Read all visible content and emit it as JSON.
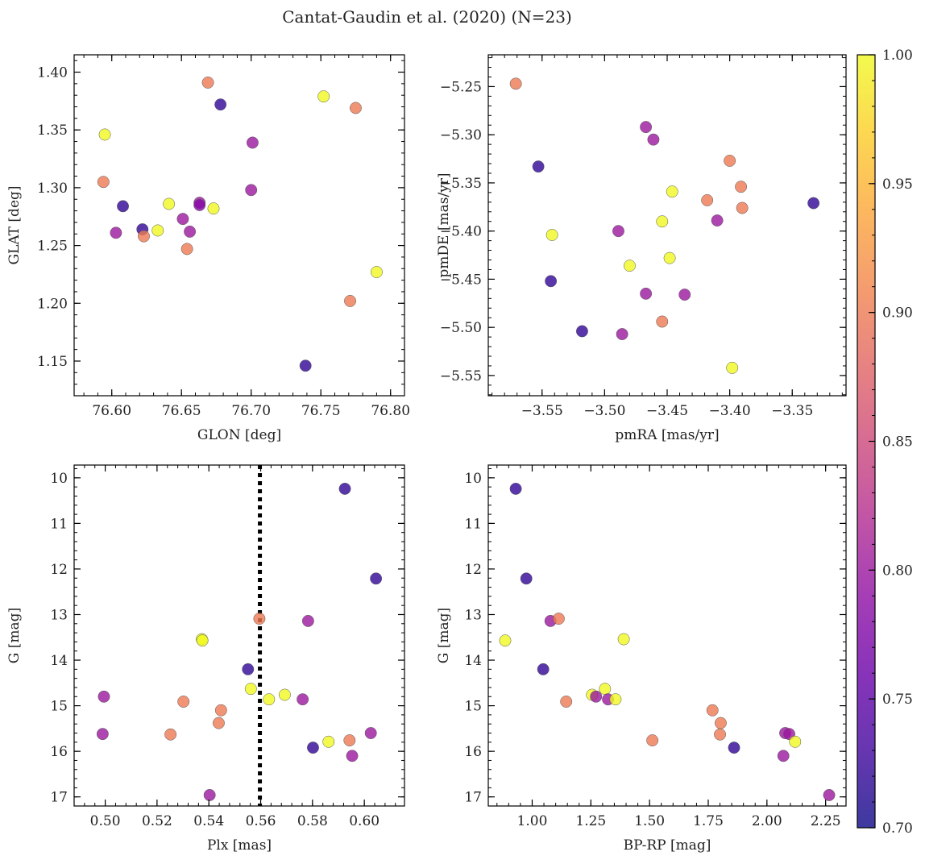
{
  "figure": {
    "title": "Cantat-Gaudin et al. (2020) (N=23)"
  },
  "colorbar": {
    "range": [
      0.7,
      1.0
    ],
    "ticks": [
      0.7,
      0.75,
      0.8,
      0.85,
      0.9,
      0.95,
      1.0
    ],
    "tick_labels": [
      "0.70",
      "0.75",
      "0.80",
      "0.85",
      "0.90",
      "0.95",
      "1.00"
    ],
    "colormap": "plasma"
  },
  "chart_data": [
    {
      "type": "scatter",
      "xlabel": "GLON [deg]",
      "ylabel": "GLAT [deg]",
      "xlim": [
        76.573,
        76.81
      ],
      "ylim": [
        1.12,
        1.415
      ],
      "xticks": [
        76.6,
        76.65,
        76.7,
        76.75,
        76.8
      ],
      "xtick_labels": [
        "76.60",
        "76.65",
        "76.70",
        "76.75",
        "76.80"
      ],
      "yticks": [
        1.15,
        1.2,
        1.25,
        1.3,
        1.35,
        1.4
      ],
      "ytick_labels": [
        "1.15",
        "1.20",
        "1.25",
        "1.30",
        "1.35",
        "1.40"
      ],
      "points": [
        {
          "x": 76.595,
          "y": 1.346,
          "c": 1.0
        },
        {
          "x": 76.594,
          "y": 1.305,
          "c": 0.9
        },
        {
          "x": 76.608,
          "y": 1.284,
          "c": 0.72
        },
        {
          "x": 76.603,
          "y": 1.261,
          "c": 0.8
        },
        {
          "x": 76.622,
          "y": 1.264,
          "c": 0.72
        },
        {
          "x": 76.623,
          "y": 1.258,
          "c": 0.9
        },
        {
          "x": 76.633,
          "y": 1.263,
          "c": 1.0
        },
        {
          "x": 76.641,
          "y": 1.286,
          "c": 1.0
        },
        {
          "x": 76.651,
          "y": 1.273,
          "c": 0.8
        },
        {
          "x": 76.654,
          "y": 1.247,
          "c": 0.9
        },
        {
          "x": 76.656,
          "y": 1.262,
          "c": 0.8
        },
        {
          "x": 76.663,
          "y": 1.287,
          "c": 0.8
        },
        {
          "x": 76.663,
          "y": 1.285,
          "c": 0.78
        },
        {
          "x": 76.669,
          "y": 1.391,
          "c": 0.9
        },
        {
          "x": 76.673,
          "y": 1.282,
          "c": 1.0
        },
        {
          "x": 76.678,
          "y": 1.372,
          "c": 0.72
        },
        {
          "x": 76.7,
          "y": 1.298,
          "c": 0.8
        },
        {
          "x": 76.701,
          "y": 1.339,
          "c": 0.8
        },
        {
          "x": 76.739,
          "y": 1.146,
          "c": 0.72
        },
        {
          "x": 76.752,
          "y": 1.379,
          "c": 1.0
        },
        {
          "x": 76.771,
          "y": 1.202,
          "c": 0.9
        },
        {
          "x": 76.775,
          "y": 1.369,
          "c": 0.9
        },
        {
          "x": 76.79,
          "y": 1.227,
          "c": 1.0
        }
      ]
    },
    {
      "type": "scatter",
      "xlabel": "pmRA [mas/yr]",
      "ylabel": "pmDE [mas/yr]",
      "xlim": [
        -3.593,
        -3.307
      ],
      "ylim": [
        -5.571,
        -5.217
      ],
      "xticks": [
        -3.55,
        -3.5,
        -3.45,
        -3.4,
        -3.35
      ],
      "xtick_labels": [
        "−3.55",
        "−3.50",
        "−3.45",
        "−3.40",
        "−3.35"
      ],
      "yticks": [
        -5.55,
        -5.5,
        -5.45,
        -5.4,
        -5.35,
        -5.3,
        -5.25
      ],
      "ytick_labels": [
        "−5.55",
        "−5.50",
        "−5.45",
        "−5.40",
        "−5.35",
        "−5.30",
        "−5.25"
      ],
      "points": [
        {
          "x": -3.571,
          "y": -5.247,
          "c": 0.9
        },
        {
          "x": -3.553,
          "y": -5.333,
          "c": 0.72
        },
        {
          "x": -3.542,
          "y": -5.404,
          "c": 1.0
        },
        {
          "x": -3.543,
          "y": -5.452,
          "c": 0.72
        },
        {
          "x": -3.518,
          "y": -5.504,
          "c": 0.72
        },
        {
          "x": -3.489,
          "y": -5.4,
          "c": 0.8
        },
        {
          "x": -3.486,
          "y": -5.507,
          "c": 0.8
        },
        {
          "x": -3.48,
          "y": -5.436,
          "c": 1.0
        },
        {
          "x": -3.467,
          "y": -5.292,
          "c": 0.8
        },
        {
          "x": -3.467,
          "y": -5.465,
          "c": 0.8
        },
        {
          "x": -3.461,
          "y": -5.305,
          "c": 0.8
        },
        {
          "x": -3.454,
          "y": -5.39,
          "c": 1.0
        },
        {
          "x": -3.454,
          "y": -5.494,
          "c": 0.9
        },
        {
          "x": -3.448,
          "y": -5.428,
          "c": 1.0
        },
        {
          "x": -3.446,
          "y": -5.359,
          "c": 1.0
        },
        {
          "x": -3.436,
          "y": -5.466,
          "c": 0.8
        },
        {
          "x": -3.418,
          "y": -5.368,
          "c": 0.9
        },
        {
          "x": -3.41,
          "y": -5.389,
          "c": 0.8
        },
        {
          "x": -3.4,
          "y": -5.327,
          "c": 0.9
        },
        {
          "x": -3.398,
          "y": -5.542,
          "c": 1.0
        },
        {
          "x": -3.391,
          "y": -5.354,
          "c": 0.9
        },
        {
          "x": -3.39,
          "y": -5.376,
          "c": 0.9
        },
        {
          "x": -3.333,
          "y": -5.371,
          "c": 0.72
        }
      ]
    },
    {
      "type": "scatter",
      "xlabel": "Plx [mas]",
      "ylabel": "G [mag]",
      "xlim": [
        0.488,
        0.6155
      ],
      "ylim": [
        17.2,
        9.72
      ],
      "y_inverted": true,
      "xticks": [
        0.5,
        0.52,
        0.54,
        0.56,
        0.58,
        0.6
      ],
      "xtick_labels": [
        "0.50",
        "0.52",
        "0.54",
        "0.56",
        "0.58",
        "0.60"
      ],
      "yticks": [
        10,
        11,
        12,
        13,
        14,
        15,
        16,
        17
      ],
      "ytick_labels": [
        "10",
        "11",
        "12",
        "13",
        "14",
        "15",
        "16",
        "17"
      ],
      "vline": {
        "x": 0.5597,
        "style": "dotted"
      },
      "points": [
        {
          "x": 0.4995,
          "y": 14.8,
          "c": 0.8
        },
        {
          "x": 0.499,
          "y": 15.62,
          "c": 0.8
        },
        {
          "x": 0.5252,
          "y": 15.63,
          "c": 0.9
        },
        {
          "x": 0.5302,
          "y": 14.91,
          "c": 0.9
        },
        {
          "x": 0.5373,
          "y": 13.54,
          "c": 1.0
        },
        {
          "x": 0.5375,
          "y": 13.57,
          "c": 1.0
        },
        {
          "x": 0.5403,
          "y": 16.96,
          "c": 0.8
        },
        {
          "x": 0.5438,
          "y": 15.38,
          "c": 0.9
        },
        {
          "x": 0.5447,
          "y": 15.1,
          "c": 0.9
        },
        {
          "x": 0.5551,
          "y": 14.2,
          "c": 0.72
        },
        {
          "x": 0.5562,
          "y": 14.63,
          "c": 1.0
        },
        {
          "x": 0.5595,
          "y": 13.09,
          "c": 0.9
        },
        {
          "x": 0.5632,
          "y": 14.86,
          "c": 1.0
        },
        {
          "x": 0.5693,
          "y": 14.76,
          "c": 1.0
        },
        {
          "x": 0.5762,
          "y": 14.86,
          "c": 0.8
        },
        {
          "x": 0.5783,
          "y": 13.14,
          "c": 0.8
        },
        {
          "x": 0.5802,
          "y": 15.92,
          "c": 0.72
        },
        {
          "x": 0.5862,
          "y": 15.79,
          "c": 1.0
        },
        {
          "x": 0.5925,
          "y": 10.24,
          "c": 0.72
        },
        {
          "x": 0.5943,
          "y": 15.76,
          "c": 0.9
        },
        {
          "x": 0.5953,
          "y": 16.1,
          "c": 0.8
        },
        {
          "x": 0.6025,
          "y": 15.6,
          "c": 0.8
        },
        {
          "x": 0.6045,
          "y": 12.21,
          "c": 0.72
        }
      ]
    },
    {
      "type": "scatter",
      "xlabel": "BP-RP [mag]",
      "ylabel": "G [mag]",
      "xlim": [
        0.813,
        2.337
      ],
      "ylim": [
        17.2,
        9.72
      ],
      "y_inverted": true,
      "xticks": [
        1.0,
        1.25,
        1.5,
        1.75,
        2.0,
        2.25
      ],
      "xtick_labels": [
        "1.00",
        "1.25",
        "1.50",
        "1.75",
        "2.00",
        "2.25"
      ],
      "yticks": [
        10,
        11,
        12,
        13,
        14,
        15,
        16,
        17
      ],
      "ytick_labels": [
        "10",
        "11",
        "12",
        "13",
        "14",
        "15",
        "16",
        "17"
      ],
      "points": [
        {
          "x": 0.885,
          "y": 13.57,
          "c": 1.0
        },
        {
          "x": 0.93,
          "y": 10.24,
          "c": 0.72
        },
        {
          "x": 0.975,
          "y": 12.21,
          "c": 0.72
        },
        {
          "x": 1.047,
          "y": 14.2,
          "c": 0.72
        },
        {
          "x": 1.078,
          "y": 13.14,
          "c": 0.8
        },
        {
          "x": 1.113,
          "y": 13.09,
          "c": 0.9
        },
        {
          "x": 1.145,
          "y": 14.91,
          "c": 0.9
        },
        {
          "x": 1.255,
          "y": 14.76,
          "c": 1.0
        },
        {
          "x": 1.272,
          "y": 14.8,
          "c": 0.8
        },
        {
          "x": 1.31,
          "y": 14.63,
          "c": 1.0
        },
        {
          "x": 1.323,
          "y": 14.86,
          "c": 0.8
        },
        {
          "x": 1.355,
          "y": 14.86,
          "c": 1.0
        },
        {
          "x": 1.39,
          "y": 13.54,
          "c": 1.0
        },
        {
          "x": 1.512,
          "y": 15.76,
          "c": 0.9
        },
        {
          "x": 1.768,
          "y": 15.1,
          "c": 0.9
        },
        {
          "x": 1.803,
          "y": 15.38,
          "c": 0.9
        },
        {
          "x": 1.8,
          "y": 15.63,
          "c": 0.9
        },
        {
          "x": 1.86,
          "y": 15.92,
          "c": 0.72
        },
        {
          "x": 2.07,
          "y": 16.1,
          "c": 0.8
        },
        {
          "x": 2.078,
          "y": 15.6,
          "c": 0.8
        },
        {
          "x": 2.095,
          "y": 15.62,
          "c": 0.8
        },
        {
          "x": 2.12,
          "y": 15.79,
          "c": 1.0
        },
        {
          "x": 2.265,
          "y": 16.96,
          "c": 0.8
        }
      ]
    }
  ]
}
